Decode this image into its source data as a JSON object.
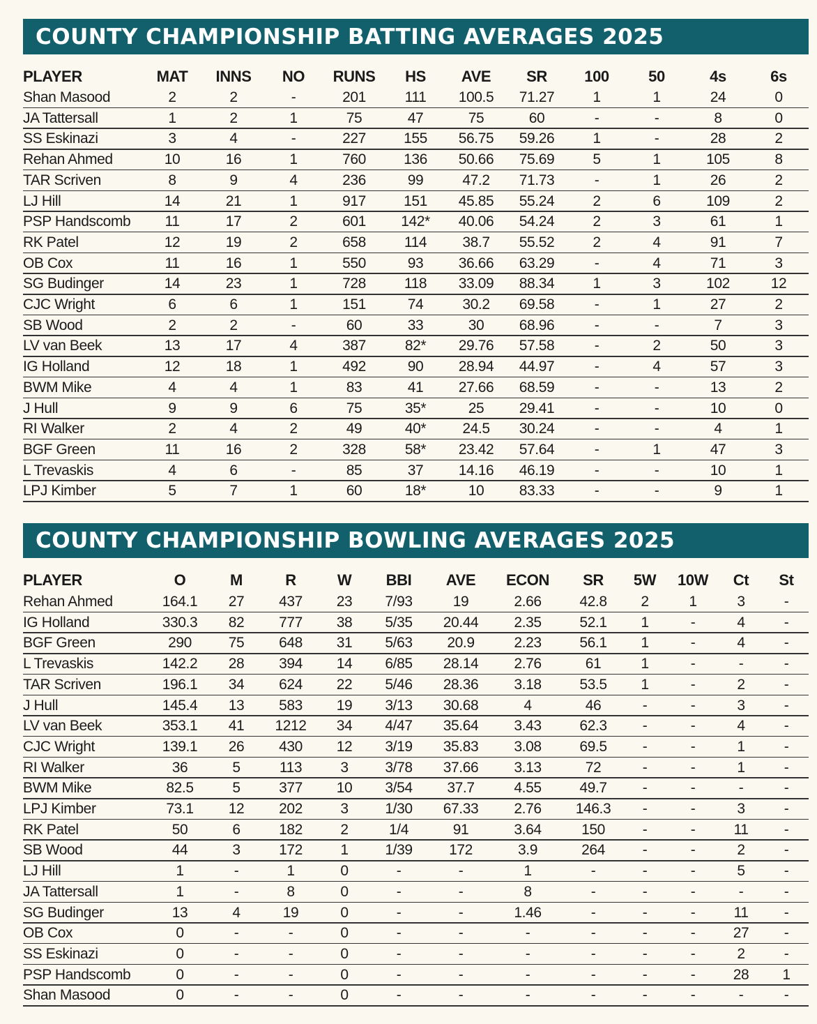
{
  "batting": {
    "title": "COUNTY CHAMPIONSHIP BATTING AVERAGES 2025",
    "columns": [
      "PLAYER",
      "MAT",
      "INNS",
      "NO",
      "RUNS",
      "HS",
      "AVE",
      "SR",
      "100",
      "50",
      "4s",
      "6s"
    ],
    "rows": [
      [
        "Shan Masood",
        "2",
        "2",
        "-",
        "201",
        "111",
        "100.5",
        "71.27",
        "1",
        "1",
        "24",
        "0"
      ],
      [
        "JA Tattersall",
        "1",
        "2",
        "1",
        "75",
        "47",
        "75",
        "60",
        "-",
        "-",
        "8",
        "0"
      ],
      [
        "SS Eskinazi",
        "3",
        "4",
        "-",
        "227",
        "155",
        "56.75",
        "59.26",
        "1",
        "-",
        "28",
        "2"
      ],
      [
        "Rehan Ahmed",
        "10",
        "16",
        "1",
        "760",
        "136",
        "50.66",
        "75.69",
        "5",
        "1",
        "105",
        "8"
      ],
      [
        "TAR Scriven",
        "8",
        "9",
        "4",
        "236",
        "99",
        "47.2",
        "71.73",
        "-",
        "1",
        "26",
        "2"
      ],
      [
        "LJ Hill",
        "14",
        "21",
        "1",
        "917",
        "151",
        "45.85",
        "55.24",
        "2",
        "6",
        "109",
        "2"
      ],
      [
        "PSP Handscomb",
        "11",
        "17",
        "2",
        "601",
        "142*",
        "40.06",
        "54.24",
        "2",
        "3",
        "61",
        "1"
      ],
      [
        "RK Patel",
        "12",
        "19",
        "2",
        "658",
        "114",
        "38.7",
        "55.52",
        "2",
        "4",
        "91",
        "7"
      ],
      [
        "OB Cox",
        "11",
        "16",
        "1",
        "550",
        "93",
        "36.66",
        "63.29",
        "-",
        "4",
        "71",
        "3"
      ],
      [
        "SG Budinger",
        "14",
        "23",
        "1",
        "728",
        "118",
        "33.09",
        "88.34",
        "1",
        "3",
        "102",
        "12"
      ],
      [
        "CJC Wright",
        "6",
        "6",
        "1",
        "151",
        "74",
        "30.2",
        "69.58",
        "-",
        "1",
        "27",
        "2"
      ],
      [
        "SB Wood",
        "2",
        "2",
        "-",
        "60",
        "33",
        "30",
        "68.96",
        "-",
        "-",
        "7",
        "3"
      ],
      [
        "LV van Beek",
        "13",
        "17",
        "4",
        "387",
        "82*",
        "29.76",
        "57.58",
        "-",
        "2",
        "50",
        "3"
      ],
      [
        "IG Holland",
        "12",
        "18",
        "1",
        "492",
        "90",
        "28.94",
        "44.97",
        "-",
        "4",
        "57",
        "3"
      ],
      [
        "BWM Mike",
        "4",
        "4",
        "1",
        "83",
        "41",
        "27.66",
        "68.59",
        "-",
        "-",
        "13",
        "2"
      ],
      [
        "J Hull",
        "9",
        "9",
        "6",
        "75",
        "35*",
        "25",
        "29.41",
        "-",
        "-",
        "10",
        "0"
      ],
      [
        "RI Walker",
        "2",
        "4",
        "2",
        "49",
        "40*",
        "24.5",
        "30.24",
        "-",
        "-",
        "4",
        "1"
      ],
      [
        "BGF Green",
        "11",
        "16",
        "2",
        "328",
        "58*",
        "23.42",
        "57.64",
        "-",
        "1",
        "47",
        "3"
      ],
      [
        "L Trevaskis",
        "4",
        "6",
        "-",
        "85",
        "37",
        "14.16",
        "46.19",
        "-",
        "-",
        "10",
        "1"
      ],
      [
        "LPJ Kimber",
        "5",
        "7",
        "1",
        "60",
        "18*",
        "10",
        "83.33",
        "-",
        "-",
        "9",
        "1"
      ]
    ]
  },
  "bowling": {
    "title": "COUNTY CHAMPIONSHIP BOWLING AVERAGES 2025",
    "columns": [
      "PLAYER",
      "O",
      "M",
      "R",
      "W",
      "BBI",
      "AVE",
      "ECON",
      "SR",
      "5W",
      "10W",
      "Ct",
      "St"
    ],
    "rows": [
      [
        "Rehan Ahmed",
        "164.1",
        "27",
        "437",
        "23",
        "7/93",
        "19",
        "2.66",
        "42.8",
        "2",
        "1",
        "3",
        "-"
      ],
      [
        "IG Holland",
        "330.3",
        "82",
        "777",
        "38",
        "5/35",
        "20.44",
        "2.35",
        "52.1",
        "1",
        "-",
        "4",
        "-"
      ],
      [
        "BGF Green",
        "290",
        "75",
        "648",
        "31",
        "5/63",
        "20.9",
        "2.23",
        "56.1",
        "1",
        "-",
        "4",
        "-"
      ],
      [
        "L Trevaskis",
        "142.2",
        "28",
        "394",
        "14",
        "6/85",
        "28.14",
        "2.76",
        "61",
        "1",
        "-",
        "-",
        "-"
      ],
      [
        "TAR Scriven",
        "196.1",
        "34",
        "624",
        "22",
        "5/46",
        "28.36",
        "3.18",
        "53.5",
        "1",
        "-",
        "2",
        "-"
      ],
      [
        "J Hull",
        "145.4",
        "13",
        "583",
        "19",
        "3/13",
        "30.68",
        "4",
        "46",
        "-",
        "-",
        "3",
        "-"
      ],
      [
        "LV van Beek",
        "353.1",
        "41",
        "1212",
        "34",
        "4/47",
        "35.64",
        "3.43",
        "62.3",
        "-",
        "-",
        "4",
        "-"
      ],
      [
        "CJC Wright",
        "139.1",
        "26",
        "430",
        "12",
        "3/19",
        "35.83",
        "3.08",
        "69.5",
        "-",
        "-",
        "1",
        "-"
      ],
      [
        "RI Walker",
        "36",
        "5",
        "113",
        "3",
        "3/78",
        "37.66",
        "3.13",
        "72",
        "-",
        "-",
        "1",
        "-"
      ],
      [
        "BWM Mike",
        "82.5",
        "5",
        "377",
        "10",
        "3/54",
        "37.7",
        "4.55",
        "49.7",
        "-",
        "-",
        "-",
        "-"
      ],
      [
        "LPJ Kimber",
        "73.1",
        "12",
        "202",
        "3",
        "1/30",
        "67.33",
        "2.76",
        "146.3",
        "-",
        "-",
        "3",
        "-"
      ],
      [
        "RK Patel",
        "50",
        "6",
        "182",
        "2",
        "1/4",
        "91",
        "3.64",
        "150",
        "-",
        "-",
        "11",
        "-"
      ],
      [
        "SB Wood",
        "44",
        "3",
        "172",
        "1",
        "1/39",
        "172",
        "3.9",
        "264",
        "-",
        "-",
        "2",
        "-"
      ],
      [
        "LJ Hill",
        "1",
        "-",
        "1",
        "0",
        "-",
        "-",
        "1",
        "-",
        "-",
        "-",
        "5",
        "-"
      ],
      [
        "JA Tattersall",
        "1",
        "-",
        "8",
        "0",
        "-",
        "-",
        "8",
        "-",
        "-",
        "-",
        "-",
        "-"
      ],
      [
        "SG Budinger",
        "13",
        "4",
        "19",
        "0",
        "-",
        "-",
        "1.46",
        "-",
        "-",
        "-",
        "11",
        "-"
      ],
      [
        "OB Cox",
        "0",
        "-",
        "-",
        "0",
        "-",
        "-",
        "-",
        "-",
        "-",
        "-",
        "27",
        "-"
      ],
      [
        "SS Eskinazi",
        "0",
        "-",
        "-",
        "0",
        "-",
        "-",
        "-",
        "-",
        "-",
        "-",
        "2",
        "-"
      ],
      [
        "PSP Handscomb",
        "0",
        "-",
        "-",
        "0",
        "-",
        "-",
        "-",
        "-",
        "-",
        "-",
        "28",
        "1"
      ],
      [
        "Shan Masood",
        "0",
        "-",
        "-",
        "0",
        "-",
        "-",
        "-",
        "-",
        "-",
        "-",
        "-",
        "-"
      ]
    ]
  }
}
